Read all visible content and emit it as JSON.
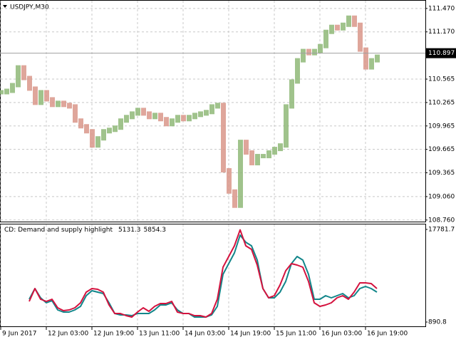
{
  "chart_data": [
    {
      "type": "price",
      "title": "USDJPY,M30",
      "values": [
        110.397,
        110.415,
        110.488,
        110.715,
        110.579,
        110.443,
        110.261,
        110.397,
        110.306,
        110.234,
        110.261,
        110.234,
        110.215,
        110.034,
        109.961,
        109.897,
        109.715,
        109.806,
        109.897,
        109.915,
        109.943,
        110.034,
        110.079,
        110.124,
        110.17,
        110.124,
        110.079,
        110.106,
        110.052,
        109.988,
        110.034,
        110.079,
        110.052,
        110.079,
        110.106,
        110.124,
        110.143,
        110.215,
        110.234,
        109.397,
        109.125,
        108.943,
        109.761,
        109.625,
        109.488,
        109.579,
        109.579,
        109.625,
        109.67,
        109.715,
        110.215,
        110.534,
        110.806,
        110.925,
        110.897,
        110.925,
        110.988,
        111.17,
        111.234,
        111.215,
        111.261,
        111.352,
        111.261,
        110.943,
        110.715,
        110.806,
        110.852
      ],
      "color_up": "#8fb878",
      "color_down": "#d9968a",
      "ylim": [
        108.74,
        111.56
      ],
      "yticks": [
        {
          "value": 111.47,
          "label": "111.470"
        },
        {
          "value": 111.17,
          "label": "111.170"
        },
        110.565,
        110.265,
        109.965,
        109.665,
        109.365,
        {
          "value": 109.06,
          "label": "109.060"
        },
        {
          "value": 108.76,
          "label": "108.760"
        }
      ],
      "current_price": 110.897,
      "grid": true
    },
    {
      "type": "line",
      "title": "CD: Demand and supply highlight",
      "indicator_values": [
        5131.3,
        5854.3
      ],
      "series": [
        {
          "color": "#12868a",
          "values": [
            null,
            null,
            null,
            null,
            null,
            5049,
            6997,
            5309,
            4399,
            4789,
            3100,
            2710,
            2710,
            3100,
            3749,
            5698,
            6608,
            6348,
            6088,
            4399,
            2450,
            2190,
            2190,
            2060,
            2450,
            2450,
            2450,
            3100,
            4009,
            4009,
            4399,
            3100,
            2450,
            2450,
            1800,
            1800,
            1800,
            2190,
            3749,
            9596,
            11545,
            13494,
            16742,
            15443,
            14793,
            12195,
            6997,
            5309,
            5309,
            6348,
            8297,
            11545,
            12844,
            12195,
            9596,
            5049,
            5049,
            5698,
            5309,
            5698,
            6088,
            5309,
            5698,
            6997,
            7387,
            6997,
            6348
          ]
        },
        {
          "color": "#d4123e",
          "values": [
            null,
            null,
            null,
            null,
            null,
            4659,
            6997,
            5049,
            4659,
            5049,
            3489,
            2970,
            3100,
            3489,
            4399,
            6348,
            6997,
            6867,
            6348,
            4009,
            2450,
            2450,
            2060,
            1800,
            2710,
            3489,
            2840,
            3749,
            4269,
            4269,
            4659,
            2710,
            2450,
            2450,
            2060,
            2060,
            1800,
            2450,
            5049,
            10895,
            12844,
            14793,
            17700,
            14793,
            14144,
            11285,
            6997,
            5309,
            5698,
            7647,
            10246,
            11545,
            11285,
            10895,
            8297,
            4399,
            3749,
            4009,
            4399,
            5309,
            5698,
            5049,
            6348,
            8037,
            8037,
            7907,
            6997
          ]
        }
      ],
      "ylim": [
        890.8,
        17781.7
      ],
      "yticks": [
        17781.7,
        890.8
      ],
      "xlim": [
        0,
        74.5
      ],
      "xticks": [
        {
          "value": 0,
          "label": "9 Jun 2017"
        },
        {
          "value": 8,
          "label": "12 Jun 03:00"
        },
        {
          "value": 16,
          "label": "12 Jun 19:00"
        },
        {
          "value": 24,
          "label": "13 Jun 11:00"
        },
        {
          "value": 32,
          "label": "14 Jun 03:00"
        },
        {
          "value": 40,
          "label": "14 Jun 19:00"
        },
        {
          "value": 48,
          "label": "15 Jun 11:00"
        },
        {
          "value": 56,
          "label": "16 Jun 03:00"
        },
        {
          "value": 64,
          "label": "16 Jun 19:00"
        }
      ],
      "grid": true
    }
  ]
}
